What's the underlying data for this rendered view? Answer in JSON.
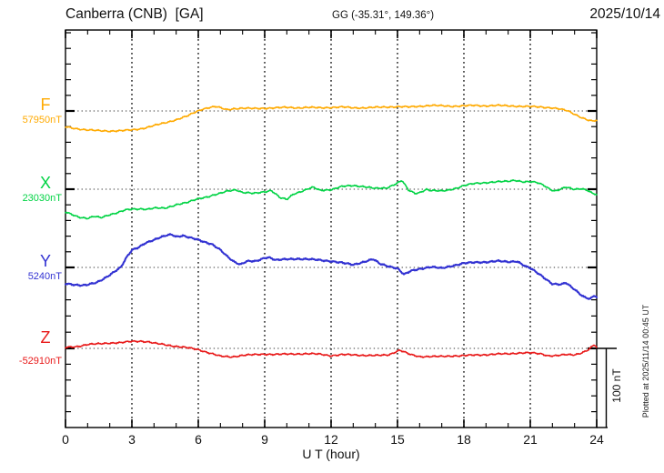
{
  "header": {
    "station_title": "Canberra (CNB)  [GA]",
    "coords": "GG (-35.31°, 149.36°)",
    "date": "2025/10/14"
  },
  "side_note": "Plotted at 2025/11/14 00:45 UT",
  "scale_bar": {
    "label": "100 nT",
    "nT": 100
  },
  "channels": [
    {
      "label": "F",
      "value_label": "57950nT",
      "color": "#FFAA00"
    },
    {
      "label": "X",
      "value_label": "23030nT",
      "color": "#00D344"
    },
    {
      "label": "Y",
      "value_label": "5240nT",
      "color": "#3232D2"
    },
    {
      "label": "Z",
      "value_label": "-52910nT",
      "color": "#E81818"
    }
  ],
  "chart_data": {
    "type": "line",
    "title": "Canberra (CNB) [GA] magnetogram for 2025/10/14",
    "xlabel": "U T (hour)",
    "x_unit": "hour UT",
    "x_range": [
      0,
      24
    ],
    "x_tick_labels": [
      "0",
      "3",
      "6",
      "9",
      "12",
      "15",
      "18",
      "21",
      "24"
    ],
    "x_gridlines_hours": [
      3,
      6,
      9,
      12,
      15,
      18,
      21
    ],
    "y_minor_tick_nT": 20,
    "scale_bar_nT": 100,
    "points_unit": "nT offset from channel baseline value",
    "series": [
      {
        "name": "F",
        "baseline_nT": 57950,
        "color": "#FFAA00",
        "points": [
          [
            0,
            -20
          ],
          [
            0.3,
            -21.5
          ],
          [
            0.7,
            -23
          ],
          [
            1,
            -24
          ],
          [
            1.5,
            -25
          ],
          [
            2,
            -25.3
          ],
          [
            2.5,
            -25
          ],
          [
            3,
            -24
          ],
          [
            3.5,
            -22
          ],
          [
            4,
            -18.5
          ],
          [
            4.5,
            -15
          ],
          [
            5,
            -11
          ],
          [
            5.5,
            -6.5
          ],
          [
            5.9,
            -1
          ],
          [
            6.2,
            2.5
          ],
          [
            6.5,
            4.5
          ],
          [
            6.8,
            5.5
          ],
          [
            7.1,
            3
          ],
          [
            7.3,
            1.5
          ],
          [
            7.6,
            3
          ],
          [
            8,
            3.5
          ],
          [
            8.5,
            3
          ],
          [
            9,
            3.5
          ],
          [
            9.5,
            4
          ],
          [
            10,
            4.5
          ],
          [
            10.5,
            4
          ],
          [
            11,
            4.5
          ],
          [
            11.5,
            4
          ],
          [
            12,
            4.5
          ],
          [
            12.5,
            5
          ],
          [
            13,
            4
          ],
          [
            13.5,
            4
          ],
          [
            14,
            4.5
          ],
          [
            14.5,
            5
          ],
          [
            15,
            5.5
          ],
          [
            15.5,
            5
          ],
          [
            16,
            6
          ],
          [
            16.5,
            7
          ],
          [
            17,
            6.5
          ],
          [
            17.5,
            6
          ],
          [
            18,
            6.5
          ],
          [
            18.5,
            7
          ],
          [
            19,
            6.5
          ],
          [
            19.5,
            7
          ],
          [
            20,
            6.5
          ],
          [
            20.5,
            6
          ],
          [
            21,
            5.5
          ],
          [
            21.5,
            5
          ],
          [
            22,
            4
          ],
          [
            22.3,
            2.5
          ],
          [
            22.7,
            0
          ],
          [
            23,
            -4
          ],
          [
            23.3,
            -8
          ],
          [
            23.6,
            -11.5
          ],
          [
            23.8,
            -13
          ],
          [
            24,
            -12
          ]
        ]
      },
      {
        "name": "X",
        "baseline_nT": 23030,
        "color": "#00D344",
        "points": [
          [
            0,
            -29
          ],
          [
            0.3,
            -32
          ],
          [
            0.6,
            -35
          ],
          [
            1,
            -37
          ],
          [
            1.3,
            -34.5
          ],
          [
            1.6,
            -36
          ],
          [
            2,
            -32
          ],
          [
            2.3,
            -30
          ],
          [
            2.7,
            -26.5
          ],
          [
            3,
            -25.3
          ],
          [
            3.4,
            -24.7
          ],
          [
            3.7,
            -25.3
          ],
          [
            4,
            -24
          ],
          [
            4.5,
            -24
          ],
          [
            5,
            -19.5
          ],
          [
            5.5,
            -17
          ],
          [
            6,
            -11.8
          ],
          [
            6.5,
            -9
          ],
          [
            7,
            -5.4
          ],
          [
            7.3,
            -2.3
          ],
          [
            7.7,
            -0.5
          ],
          [
            8,
            -4.2
          ],
          [
            8.5,
            -5.4
          ],
          [
            9,
            -3.1
          ],
          [
            9.3,
            -1.5
          ],
          [
            9.7,
            -11
          ],
          [
            10,
            -13
          ],
          [
            10.3,
            -6
          ],
          [
            10.7,
            -2.3
          ],
          [
            11,
            0.8
          ],
          [
            11.2,
            2.3
          ],
          [
            11.5,
            -1.5
          ],
          [
            12,
            -0.4
          ],
          [
            12.5,
            3.4
          ],
          [
            13,
            4.6
          ],
          [
            13.5,
            3.4
          ],
          [
            14,
            0.8
          ],
          [
            14.5,
            1.5
          ],
          [
            15,
            8
          ],
          [
            15.2,
            11
          ],
          [
            15.5,
            -1.5
          ],
          [
            15.8,
            -5.4
          ],
          [
            16,
            -4.2
          ],
          [
            16.3,
            0
          ],
          [
            16.5,
            -1.7
          ],
          [
            17,
            -2.4
          ],
          [
            17.3,
            -1
          ],
          [
            17.7,
            1.7
          ],
          [
            18,
            4.5
          ],
          [
            18.5,
            7.3
          ],
          [
            19,
            8.4
          ],
          [
            19.5,
            9.2
          ],
          [
            20,
            10
          ],
          [
            20.3,
            11.5
          ],
          [
            20.7,
            9.2
          ],
          [
            21,
            9.2
          ],
          [
            21.3,
            8.4
          ],
          [
            21.6,
            5.4
          ],
          [
            21.9,
            0
          ],
          [
            22.1,
            -2.4
          ],
          [
            22.3,
            -1
          ],
          [
            22.6,
            2.4
          ],
          [
            23,
            0
          ],
          [
            23.3,
            1
          ],
          [
            23.6,
            -1.7
          ],
          [
            23.8,
            -5.4
          ],
          [
            24,
            -7
          ]
        ]
      },
      {
        "name": "Y",
        "baseline_nT": 5240,
        "color": "#3232D2",
        "points": [
          [
            0,
            -20.7
          ],
          [
            0.4,
            -21.8
          ],
          [
            0.8,
            -22.4
          ],
          [
            1,
            -21.8
          ],
          [
            1.4,
            -19.5
          ],
          [
            1.7,
            -14.9
          ],
          [
            2,
            -9.2
          ],
          [
            2.3,
            -3.4
          ],
          [
            2.5,
            0
          ],
          [
            2.75,
            12
          ],
          [
            3,
            21.8
          ],
          [
            3.3,
            25.6
          ],
          [
            3.6,
            31
          ],
          [
            4,
            34.5
          ],
          [
            4.3,
            37.9
          ],
          [
            4.6,
            41
          ],
          [
            4.8,
            42
          ],
          [
            5,
            39
          ],
          [
            5.3,
            39.9
          ],
          [
            5.6,
            37.5
          ],
          [
            6,
            35.2
          ],
          [
            6.3,
            32.2
          ],
          [
            6.6,
            29.5
          ],
          [
            7,
            21.8
          ],
          [
            7.3,
            14.1
          ],
          [
            7.6,
            7.7
          ],
          [
            7.9,
            3.8
          ],
          [
            8.2,
            7.7
          ],
          [
            8.6,
            7.7
          ],
          [
            9,
            12.3
          ],
          [
            9.2,
            12.9
          ],
          [
            9.5,
            9.2
          ],
          [
            10,
            10.3
          ],
          [
            10.5,
            11
          ],
          [
            11,
            10.3
          ],
          [
            11.5,
            9.2
          ],
          [
            12,
            8
          ],
          [
            12.5,
            5.7
          ],
          [
            13,
            3.4
          ],
          [
            13.3,
            5.7
          ],
          [
            13.6,
            8
          ],
          [
            13.9,
            10.3
          ],
          [
            14.2,
            4.6
          ],
          [
            14.5,
            2.3
          ],
          [
            15,
            -1.1
          ],
          [
            15.3,
            -9.2
          ],
          [
            15.6,
            -4.6
          ],
          [
            16,
            -1.7
          ],
          [
            16.5,
            0.6
          ],
          [
            17,
            -1.1
          ],
          [
            17.5,
            2.3
          ],
          [
            18,
            5.2
          ],
          [
            18.5,
            6.3
          ],
          [
            19,
            6.9
          ],
          [
            19.5,
            8
          ],
          [
            20,
            6.9
          ],
          [
            20.4,
            8
          ],
          [
            20.8,
            1.1
          ],
          [
            21,
            -1.1
          ],
          [
            21.5,
            -10.3
          ],
          [
            22,
            -20.7
          ],
          [
            22.4,
            -21.8
          ],
          [
            22.6,
            -19.5
          ],
          [
            23,
            -27.6
          ],
          [
            23.4,
            -36.8
          ],
          [
            23.7,
            -40.2
          ],
          [
            23.9,
            -35.6
          ],
          [
            24,
            -37.9
          ]
        ]
      },
      {
        "name": "Z",
        "baseline_nT": -52910,
        "color": "#E81818",
        "points": [
          [
            0,
            1.1
          ],
          [
            0.5,
            2.3
          ],
          [
            1,
            4.9
          ],
          [
            1.5,
            5.7
          ],
          [
            2,
            6.9
          ],
          [
            2.5,
            7.2
          ],
          [
            3,
            8.8
          ],
          [
            3.4,
            9.2
          ],
          [
            3.8,
            8
          ],
          [
            4,
            6.5
          ],
          [
            4.5,
            4.6
          ],
          [
            5,
            2.6
          ],
          [
            5.5,
            0.8
          ],
          [
            6,
            -1.5
          ],
          [
            6.5,
            -5.7
          ],
          [
            7,
            -10
          ],
          [
            7.5,
            -10.7
          ],
          [
            8,
            -8.8
          ],
          [
            8.5,
            -8
          ],
          [
            9,
            -7.2
          ],
          [
            9.5,
            -7.7
          ],
          [
            10,
            -7.2
          ],
          [
            10.5,
            -6.9
          ],
          [
            11,
            -6.9
          ],
          [
            11.5,
            -7.2
          ],
          [
            12,
            -9.2
          ],
          [
            12.5,
            -8
          ],
          [
            13,
            -8
          ],
          [
            13.5,
            -8.8
          ],
          [
            14,
            -9.2
          ],
          [
            14.6,
            -8
          ],
          [
            15.1,
            -2.3
          ],
          [
            15.3,
            -4.6
          ],
          [
            15.6,
            -8
          ],
          [
            16,
            -10.3
          ],
          [
            16.5,
            -10.3
          ],
          [
            17,
            -10.3
          ],
          [
            17.5,
            -9.5
          ],
          [
            18,
            -9.2
          ],
          [
            18.5,
            -8.4
          ],
          [
            19,
            -8
          ],
          [
            19.5,
            -7.2
          ],
          [
            20,
            -6.9
          ],
          [
            20.5,
            -5.7
          ],
          [
            21,
            -5.7
          ],
          [
            21.5,
            -6.9
          ],
          [
            21.8,
            -9.2
          ],
          [
            22.2,
            -9.2
          ],
          [
            22.6,
            -8
          ],
          [
            23,
            -8
          ],
          [
            23.3,
            -5.7
          ],
          [
            23.6,
            -2.3
          ],
          [
            23.8,
            2.3
          ],
          [
            23.9,
            4.6
          ],
          [
            24,
            1.1
          ]
        ]
      }
    ]
  }
}
